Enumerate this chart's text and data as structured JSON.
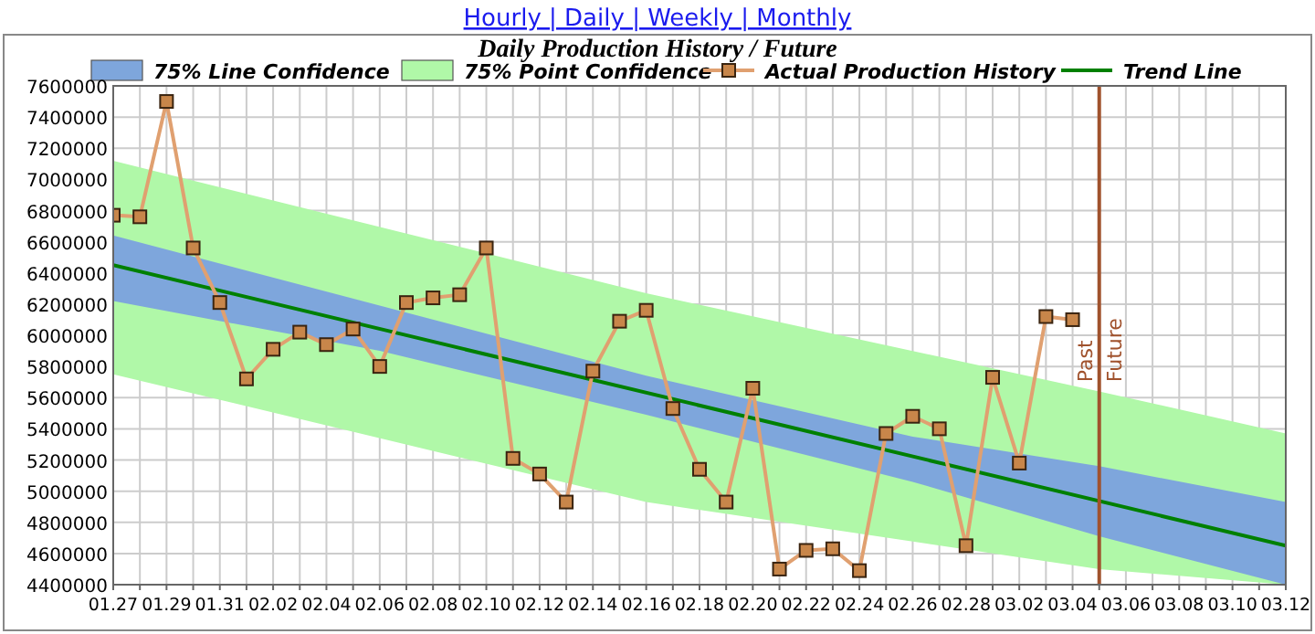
{
  "chart_data": {
    "type": "line",
    "title": "Daily Production History / Future",
    "annotations": [
      "Hourly | Daily | Weekly | Monthly",
      {
        "text": "Past",
        "x": "--03-05"
      }
    ],
    "series": [
      {
        "name": "75% Line Confidence",
        "type": "line",
        "color": "#7ea6dc",
        "marker": "none",
        "x": [
          "--01-27",
          "--02-06",
          "--02-16",
          "--02-26",
          "--03-05",
          "--03-12"
        ],
        "values": [
          null,
          null,
          null,
          null,
          null,
          null
        ],
        "lower": [
          6220000,
          5900000,
          5490000,
          5060000,
          4710000,
          4400000
        ],
        "upper": [
          6640000,
          6190000,
          5740000,
          5350000,
          5160000,
          4930000
        ]
      },
      {
        "name": "75% Point Confidence",
        "type": "line",
        "color": "#b0f8a8",
        "marker": "none",
        "x": [
          "--01-27",
          "--02-16",
          "--03-05",
          "--03-12"
        ],
        "values": [
          null,
          null,
          null,
          null
        ],
        "lower": [
          5750000,
          4930000,
          4500000,
          4400000
        ],
        "upper": [
          7120000,
          6270000,
          5640000,
          5370000
        ]
      },
      {
        "name": "Actual Production History",
        "color": "#e0a070",
        "marker": "square",
        "x": [
          "--01-27",
          "--01-28",
          "--01-29",
          "--01-30",
          "--01-31",
          "--02-01",
          "--02-02",
          "--02-03",
          "--02-04",
          "--02-05",
          "--02-06",
          "--02-07",
          "--02-08",
          "--02-09",
          "--02-10",
          "--02-11",
          "--02-12",
          "--02-13",
          "--02-14",
          "--02-15",
          "--02-16",
          "--02-17",
          "--02-18",
          "--02-19",
          "--02-20",
          "--02-21",
          "--02-22",
          "--02-23",
          "--02-24",
          "--02-25",
          "--02-26",
          "--02-27",
          "--02-28",
          "--03-01",
          "--03-02",
          "--03-03",
          "--03-04"
        ],
        "values": [
          6770000,
          6760000,
          7500000,
          6560000,
          6210000,
          5720000,
          5910000,
          6020000,
          5940000,
          6040000,
          5800000,
          6210000,
          6240000,
          6260000,
          6560000,
          5210000,
          5110000,
          4930000,
          5770000,
          6090000,
          6160000,
          5530000,
          5140000,
          4930000,
          5660000,
          4500000,
          4620000,
          4630000,
          4490000,
          5370000,
          5480000,
          5400000,
          4650000,
          5730000,
          5180000,
          6120000,
          6100000
        ]
      },
      {
        "name": "Trend Line",
        "type": "line",
        "color": "#008000",
        "marker": "none",
        "x": [
          "--01-27",
          "--03-12"
        ],
        "values": [
          6450000,
          4650000
        ]
      }
    ],
    "ref_lines": [
      {
        "axis": "x",
        "value": "--03-05",
        "label": "Future",
        "color": "#a0522d"
      }
    ],
    "xlim": [
      "--01-27",
      "--03-12"
    ],
    "xticks": [
      {
        "value": "--01-27",
        "label": "01.27"
      },
      {
        "value": "--01-28",
        "label": null
      },
      {
        "value": "--01-29",
        "label": "01.29"
      },
      {
        "value": "--01-30",
        "label": null
      },
      {
        "value": "--01-31",
        "label": "01.31"
      },
      {
        "value": "--02-01",
        "label": null
      },
      {
        "value": "--02-02",
        "label": "02.02"
      },
      {
        "value": "--02-03",
        "label": null
      },
      {
        "value": "--02-04",
        "label": "02.04"
      },
      {
        "value": "--02-05",
        "label": null
      },
      {
        "value": "--02-06",
        "label": "02.06"
      },
      {
        "value": "--02-07",
        "label": null
      },
      {
        "value": "--02-08",
        "label": "02.08"
      },
      {
        "value": "--02-09",
        "label": null
      },
      {
        "value": "--02-10",
        "label": "02.10"
      },
      {
        "value": "--02-11",
        "label": null
      },
      {
        "value": "--02-12",
        "label": "02.12"
      },
      {
        "value": "--02-13",
        "label": null
      },
      {
        "value": "--02-14",
        "label": "02.14"
      },
      {
        "value": "--02-15",
        "label": null
      },
      {
        "value": "--02-16",
        "label": "02.16"
      },
      {
        "value": "--02-17",
        "label": null
      },
      {
        "value": "--02-18",
        "label": "02.18"
      },
      {
        "value": "--02-19",
        "label": null
      },
      {
        "value": "--02-20",
        "label": "02.20"
      },
      {
        "value": "--02-21",
        "label": null
      },
      {
        "value": "--02-22",
        "label": "02.22"
      },
      {
        "value": "--02-23",
        "label": null
      },
      {
        "value": "--02-24",
        "label": "02.24"
      },
      {
        "value": "--02-25",
        "label": null
      },
      {
        "value": "--02-26",
        "label": "02.26"
      },
      {
        "value": "--02-27",
        "label": null
      },
      {
        "value": "--02-28",
        "label": "02.28"
      },
      {
        "value": "--03-01",
        "label": null
      },
      {
        "value": "--03-02",
        "label": "03.02"
      },
      {
        "value": "--03-03",
        "label": null
      },
      {
        "value": "--03-04",
        "label": "03.04"
      },
      {
        "value": "--03-05",
        "label": null
      },
      {
        "value": "--03-06",
        "label": "03.06"
      },
      {
        "value": "--03-07",
        "label": null
      },
      {
        "value": "--03-08",
        "label": "03.08"
      },
      {
        "value": "--03-09",
        "label": null
      },
      {
        "value": "--03-10",
        "label": "03.10"
      },
      {
        "value": "--03-11",
        "label": null
      },
      {
        "value": "--03-12",
        "label": "03.12"
      }
    ],
    "ylim": [
      4400000,
      7600000
    ],
    "yticks": [
      4400000,
      4600000,
      4800000,
      5000000,
      5200000,
      5400000,
      5600000,
      5800000,
      6000000,
      6200000,
      6400000,
      6600000,
      6800000,
      7000000,
      7200000,
      7400000,
      7600000
    ],
    "grid": true,
    "legend": "top"
  }
}
